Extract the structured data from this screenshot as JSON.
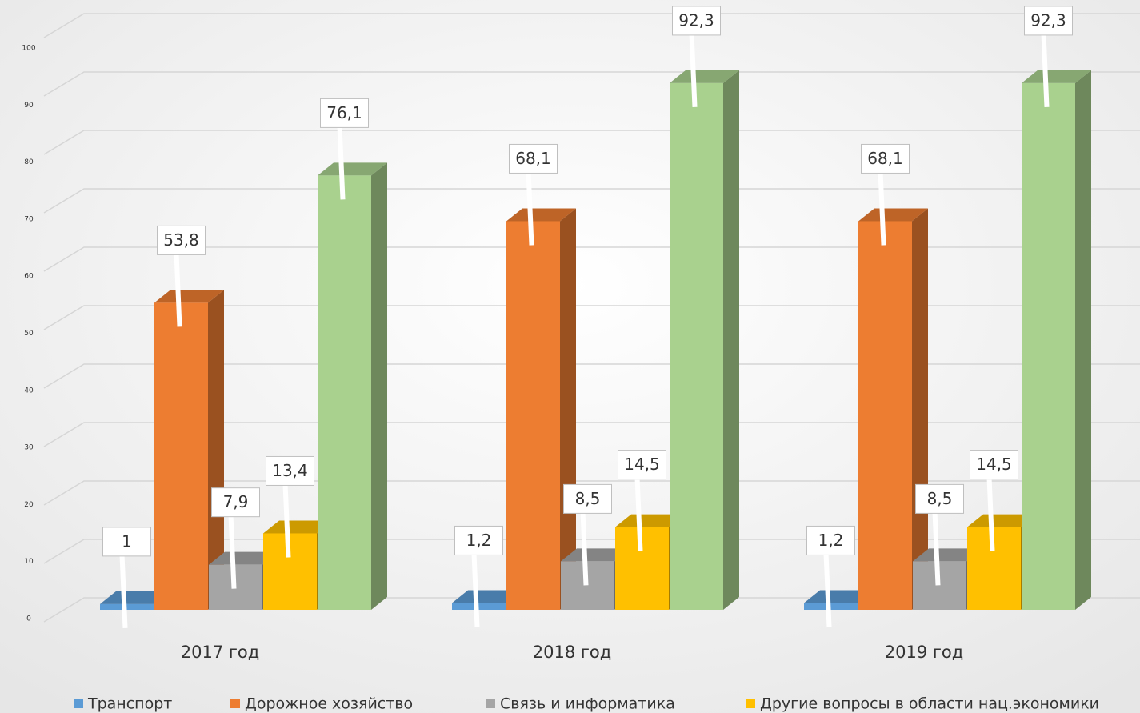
{
  "chart_data": {
    "type": "bar3d",
    "categories": [
      "2017 год",
      "2018 год",
      "2019 год"
    ],
    "series": [
      {
        "name": "Транспорт",
        "color": "#5b9bd5",
        "values": [
          1,
          1.2,
          1.2
        ],
        "value_labels": [
          "1",
          "1,2",
          "1,2"
        ]
      },
      {
        "name": "Дорожное хозяйство",
        "color": "#ed7d31",
        "values": [
          53.8,
          68.1,
          68.1
        ],
        "value_labels": [
          "53,8",
          "68,1",
          "68,1"
        ]
      },
      {
        "name": "Связь и информатика",
        "color": "#a5a5a5",
        "values": [
          7.9,
          8.5,
          8.5
        ],
        "value_labels": [
          "7,9",
          "8,5",
          "8,5"
        ]
      },
      {
        "name": "Другие вопросы в области нац.экономики",
        "color": "#ffc000",
        "values": [
          13.4,
          14.5,
          14.5
        ],
        "value_labels": [
          "13,4",
          "14,5",
          "14,5"
        ]
      },
      {
        "color": "#a9d18e",
        "values": [
          76.1,
          92.3,
          92.3
        ],
        "value_labels": [
          "76,1",
          "92,3",
          "92,3"
        ]
      }
    ],
    "ylim": [
      0,
      100
    ],
    "yticks": [
      0,
      10,
      20,
      30,
      40,
      50,
      60,
      70,
      80,
      90,
      100
    ],
    "grid": true,
    "legend": "bottom"
  }
}
